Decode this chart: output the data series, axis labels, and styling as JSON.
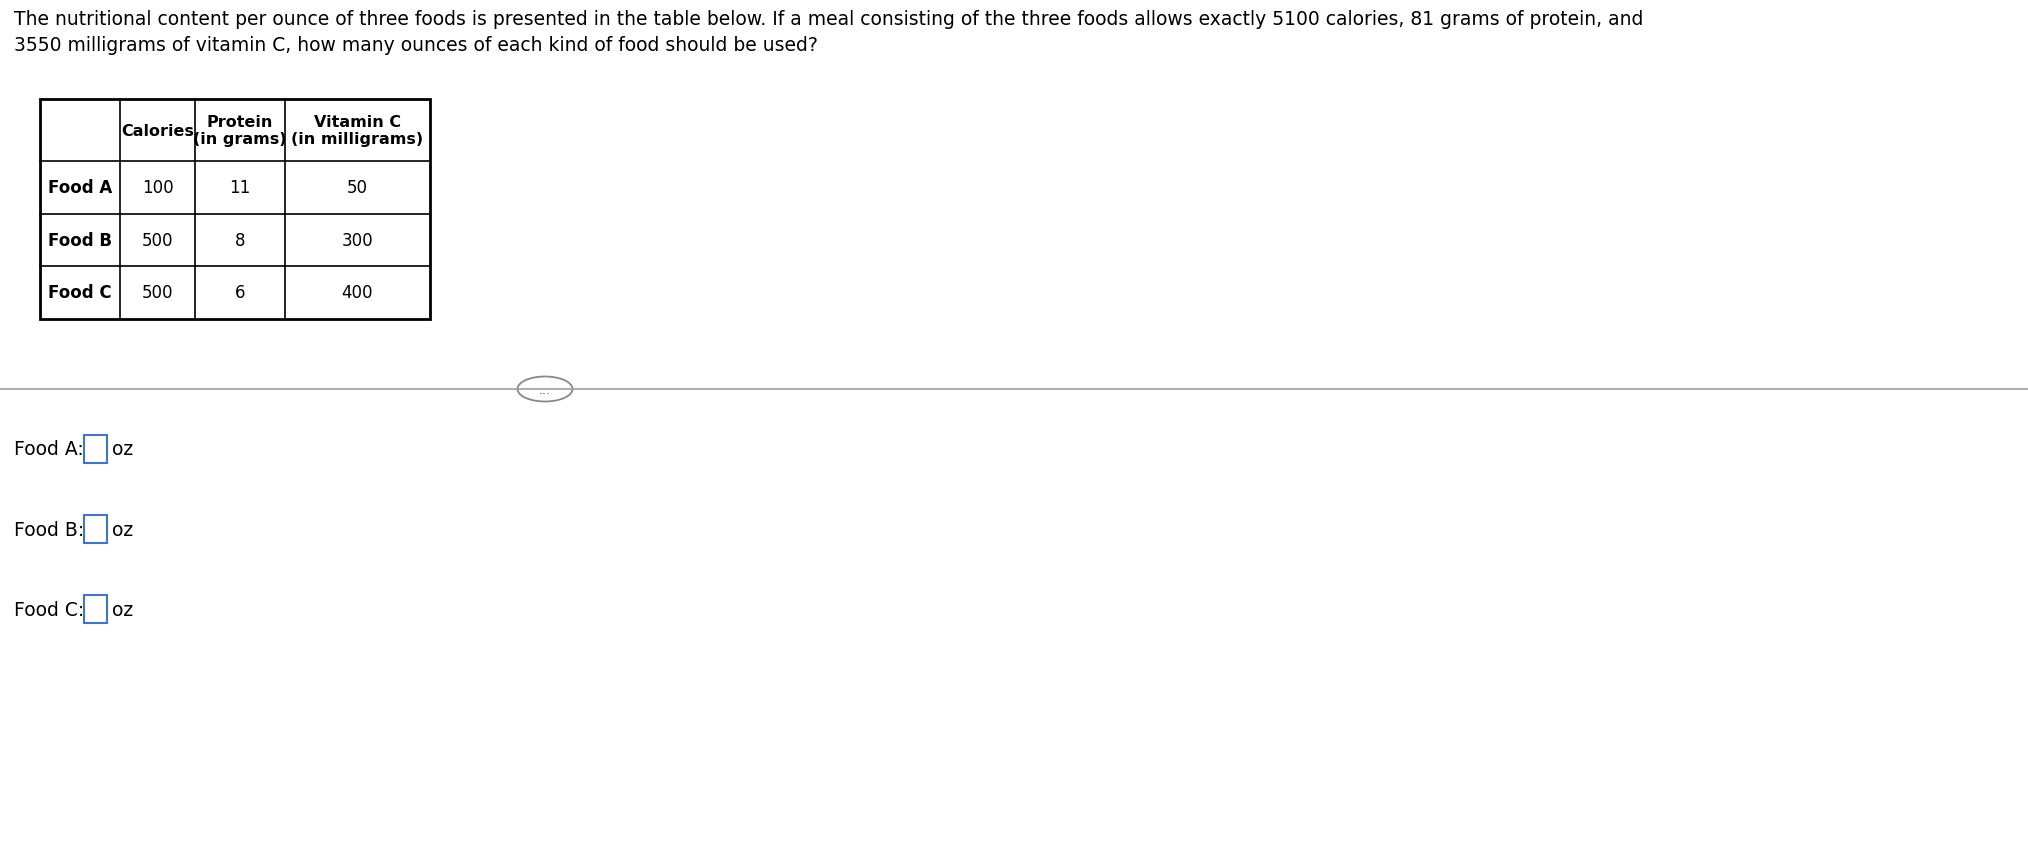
{
  "title_text": "The nutritional content per ounce of three foods is presented in the table below. If a meal consisting of the three foods allows exactly 5100 calories, 81 grams of protein, and\n3550 milligrams of vitamin C, how many ounces of each kind of food should be used?",
  "table_headers": [
    "",
    "Calories",
    "Protein\n(in grams)",
    "Vitamin C\n(in milligrams)"
  ],
  "table_rows": [
    [
      "Food A",
      "100",
      "11",
      "50"
    ],
    [
      "Food B",
      "500",
      "8",
      "300"
    ],
    [
      "Food C",
      "500",
      "6",
      "400"
    ]
  ],
  "answer_labels": [
    "Food A:",
    "Food B:",
    "Food C:"
  ],
  "answer_unit": "oz",
  "bg_color": "#ffffff",
  "text_color": "#000000",
  "table_border_color": "#000000",
  "box_color": "#4472c4",
  "divider_color": "#a0a0a0",
  "dots_color": "#555555",
  "fig_width": 20.28,
  "fig_height": 8.62,
  "dpi": 100
}
